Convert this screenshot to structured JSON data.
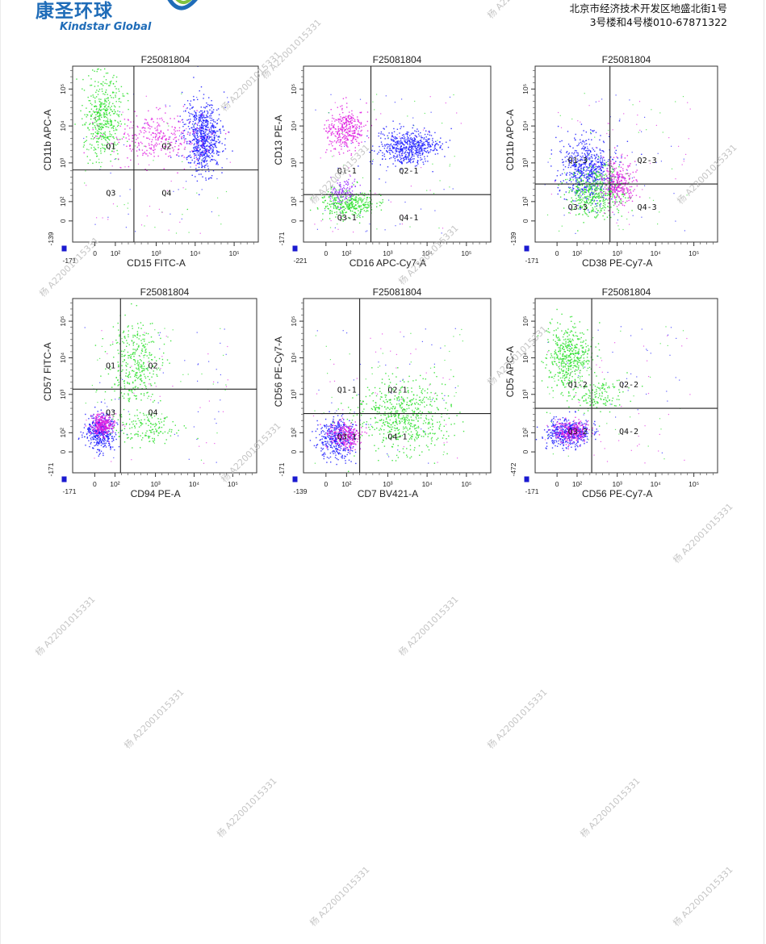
{
  "header": {
    "logo_cn": "康圣环球",
    "logo_en": "Kindstar Global",
    "address_line1": "北京市经济技术开发区地盛北街1号",
    "address_line2": "3号楼和4号楼010-67871322"
  },
  "watermark_text": "杨 A22001015331",
  "colors": {
    "blue": "#1a1aff",
    "magenta": "#e020e0",
    "green": "#28e028",
    "purple": "#9b30ff",
    "gate_line": "#222222"
  },
  "chart_data": [
    {
      "type": "scatter",
      "title": "F25081804",
      "xlabel": "CD15 FITC-A",
      "ylabel": "CD11b APC-A",
      "x_axis": {
        "min_label": "-171",
        "ticks": [
          "0",
          "10²",
          "10³",
          "10⁴",
          "10⁵"
        ],
        "scale": "biexponential"
      },
      "y_axis": {
        "min_label": "-139",
        "ticks": [
          "0",
          "10²",
          "10³",
          "10⁴",
          "10⁵"
        ],
        "scale": "biexponential"
      },
      "quadrants": {
        "labels": [
          "Q1",
          "Q2",
          "Q3",
          "Q4"
        ],
        "x_gate": 0.33,
        "y_gate": 0.59
      },
      "populations": [
        {
          "color": "blue",
          "cx": 0.7,
          "cy": 0.4,
          "sx": 0.05,
          "sy": 0.1,
          "n": 700
        },
        {
          "color": "green",
          "cx": 0.16,
          "cy": 0.28,
          "sx": 0.05,
          "sy": 0.12,
          "n": 450
        },
        {
          "color": "magenta",
          "cx": 0.45,
          "cy": 0.4,
          "sx": 0.13,
          "sy": 0.07,
          "n": 300
        }
      ]
    },
    {
      "type": "scatter",
      "title": "F25081804",
      "xlabel": "CD16 APC-Cy7-A",
      "ylabel": "CD13 PE-A",
      "x_axis": {
        "min_label": "-221",
        "ticks": [
          "0",
          "10²",
          "10³",
          "10⁴",
          "10⁵"
        ],
        "scale": "biexponential"
      },
      "y_axis": {
        "min_label": "-171",
        "ticks": [
          "0",
          "10²",
          "10³",
          "10⁴",
          "10⁵"
        ],
        "scale": "biexponential"
      },
      "quadrants": {
        "labels": [
          "Q1-1",
          "Q2-1",
          "Q3-1",
          "Q4-1"
        ],
        "x_gate": 0.36,
        "y_gate": 0.73
      },
      "populations": [
        {
          "color": "blue",
          "cx": 0.56,
          "cy": 0.46,
          "sx": 0.08,
          "sy": 0.05,
          "n": 550
        },
        {
          "color": "magenta",
          "cx": 0.22,
          "cy": 0.36,
          "sx": 0.05,
          "sy": 0.06,
          "n": 350
        },
        {
          "color": "green",
          "cx": 0.24,
          "cy": 0.78,
          "sx": 0.07,
          "sy": 0.04,
          "n": 350
        },
        {
          "color": "purple",
          "cx": 0.21,
          "cy": 0.7,
          "sx": 0.04,
          "sy": 0.04,
          "n": 120
        }
      ]
    },
    {
      "type": "scatter",
      "title": "F25081804",
      "xlabel": "CD38 PE-Cy7-A",
      "ylabel": "CD11b APC-A",
      "x_axis": {
        "min_label": "-171",
        "ticks": [
          "0",
          "10²",
          "10³",
          "10⁴",
          "10⁵"
        ],
        "scale": "biexponential"
      },
      "y_axis": {
        "min_label": "-139",
        "ticks": [
          "0",
          "10²",
          "10³",
          "10⁴",
          "10⁵"
        ],
        "scale": "biexponential"
      },
      "quadrants": {
        "labels": [
          "Q1-3",
          "Q2-3",
          "Q3-3",
          "Q4-3"
        ],
        "x_gate": 0.41,
        "y_gate": 0.67
      },
      "populations": [
        {
          "color": "blue",
          "cx": 0.28,
          "cy": 0.58,
          "sx": 0.07,
          "sy": 0.09,
          "n": 600
        },
        {
          "color": "green",
          "cx": 0.33,
          "cy": 0.72,
          "sx": 0.08,
          "sy": 0.07,
          "n": 450
        },
        {
          "color": "magenta",
          "cx": 0.45,
          "cy": 0.66,
          "sx": 0.05,
          "sy": 0.06,
          "n": 300
        }
      ]
    },
    {
      "type": "scatter",
      "title": "F25081804",
      "xlabel": "CD94 PE-A",
      "ylabel": "CD57 FITC-A",
      "x_axis": {
        "min_label": "-171",
        "ticks": [
          "0",
          "10²",
          "10³",
          "10⁴",
          "10⁵"
        ],
        "scale": "biexponential"
      },
      "y_axis": {
        "min_label": "-171",
        "ticks": [
          "0",
          "10²",
          "10³",
          "10⁴",
          "10⁵"
        ],
        "scale": "biexponential"
      },
      "quadrants": {
        "labels": [
          "Q1",
          "Q2",
          "Q3",
          "Q4"
        ],
        "x_gate": 0.26,
        "y_gate": 0.52
      },
      "populations": [
        {
          "color": "blue",
          "cx": 0.15,
          "cy": 0.76,
          "sx": 0.04,
          "sy": 0.05,
          "n": 400
        },
        {
          "color": "magenta",
          "cx": 0.16,
          "cy": 0.72,
          "sx": 0.03,
          "sy": 0.03,
          "n": 280
        },
        {
          "color": "green",
          "cx": 0.34,
          "cy": 0.38,
          "sx": 0.07,
          "sy": 0.12,
          "n": 350
        },
        {
          "color": "green",
          "cx": 0.38,
          "cy": 0.74,
          "sx": 0.09,
          "sy": 0.05,
          "n": 150
        }
      ]
    },
    {
      "type": "scatter",
      "title": "F25081804",
      "xlabel": "CD7 BV421-A",
      "ylabel": "CD56 PE-Cy7-A",
      "x_axis": {
        "min_label": "-139",
        "ticks": [
          "0",
          "10²",
          "10³",
          "10⁴",
          "10⁵"
        ],
        "scale": "biexponential"
      },
      "y_axis": {
        "min_label": "-171",
        "ticks": [
          "0",
          "10²",
          "10³",
          "10⁴",
          "10⁵"
        ],
        "scale": "biexponential"
      },
      "quadrants": {
        "labels": [
          "Q1-1",
          "Q2-1",
          "Q3-1",
          "Q4-1"
        ],
        "x_gate": 0.3,
        "y_gate": 0.66
      },
      "populations": [
        {
          "color": "green",
          "cx": 0.52,
          "cy": 0.67,
          "sx": 0.12,
          "sy": 0.1,
          "n": 600
        },
        {
          "color": "blue",
          "cx": 0.18,
          "cy": 0.8,
          "sx": 0.05,
          "sy": 0.06,
          "n": 400
        },
        {
          "color": "magenta",
          "cx": 0.22,
          "cy": 0.78,
          "sx": 0.04,
          "sy": 0.04,
          "n": 250
        }
      ]
    },
    {
      "type": "scatter",
      "title": "F25081804",
      "xlabel": "CD56 PE-Cy7-A",
      "ylabel": "CD5 APC-A",
      "x_axis": {
        "min_label": "-171",
        "ticks": [
          "0",
          "10²",
          "10³",
          "10⁴",
          "10⁵"
        ],
        "scale": "biexponential"
      },
      "y_axis": {
        "min_label": "-472",
        "ticks": [
          "0",
          "10²",
          "10³",
          "10⁴",
          "10⁵"
        ],
        "scale": "biexponential"
      },
      "quadrants": {
        "labels": [
          "Q1-2",
          "Q2-2",
          "Q3-2",
          "Q4-2"
        ],
        "x_gate": 0.31,
        "y_gate": 0.63
      },
      "populations": [
        {
          "color": "green",
          "cx": 0.18,
          "cy": 0.33,
          "sx": 0.06,
          "sy": 0.09,
          "n": 450
        },
        {
          "color": "green",
          "cx": 0.32,
          "cy": 0.55,
          "sx": 0.08,
          "sy": 0.05,
          "n": 150
        },
        {
          "color": "blue",
          "cx": 0.18,
          "cy": 0.77,
          "sx": 0.06,
          "sy": 0.04,
          "n": 450
        },
        {
          "color": "magenta",
          "cx": 0.2,
          "cy": 0.76,
          "sx": 0.05,
          "sy": 0.03,
          "n": 250
        }
      ]
    }
  ]
}
